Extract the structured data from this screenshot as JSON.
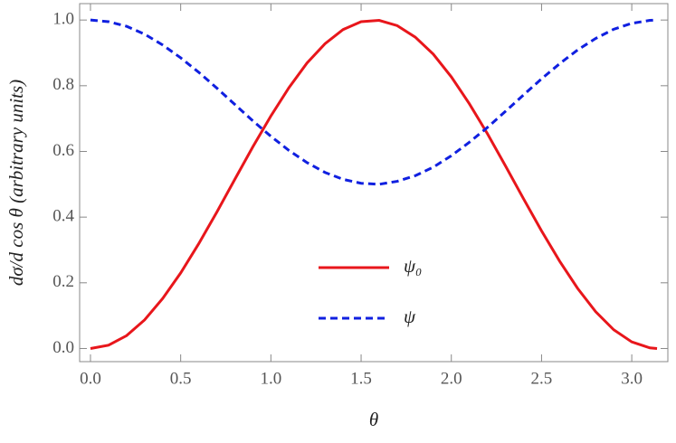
{
  "chart_data": {
    "type": "line",
    "x_label": "θ",
    "y_label": "dσ/d cos θ (arbitrary units)",
    "x": [
      0,
      0.1,
      0.2,
      0.3,
      0.4,
      0.5,
      0.6,
      0.7,
      0.8,
      0.9,
      1.0,
      1.1,
      1.2,
      1.3,
      1.4,
      1.5,
      1.6,
      1.7,
      1.8,
      1.9,
      2.0,
      2.1,
      2.2,
      2.3,
      2.4,
      2.5,
      2.6,
      2.7,
      2.8,
      2.9,
      3.0,
      3.1,
      3.14
    ],
    "series": [
      {
        "name": "ψ₀",
        "color": "#e8161b",
        "dash": false,
        "values": [
          0,
          0.01,
          0.039,
          0.087,
          0.152,
          0.23,
          0.319,
          0.415,
          0.515,
          0.614,
          0.708,
          0.794,
          0.869,
          0.928,
          0.971,
          0.995,
          0.999,
          0.983,
          0.948,
          0.896,
          0.827,
          0.745,
          0.654,
          0.556,
          0.456,
          0.358,
          0.266,
          0.183,
          0.112,
          0.057,
          0.02,
          0.002,
          0.0
        ]
      },
      {
        "name": "ψ",
        "color": "#1020e0",
        "dash": true,
        "values": [
          1,
          0.995,
          0.981,
          0.957,
          0.924,
          0.885,
          0.841,
          0.793,
          0.743,
          0.693,
          0.646,
          0.603,
          0.566,
          0.536,
          0.515,
          0.503,
          0.5,
          0.509,
          0.526,
          0.552,
          0.587,
          0.628,
          0.673,
          0.722,
          0.772,
          0.821,
          0.867,
          0.909,
          0.944,
          0.972,
          0.99,
          0.999,
          1.0
        ]
      }
    ],
    "xlim": [
      -0.06,
      3.2
    ],
    "ylim": [
      -0.04,
      1.05
    ],
    "xticks": [
      {
        "value": 0,
        "label": "0.0"
      },
      0.5,
      {
        "value": 1,
        "label": "1.0"
      },
      1.5,
      {
        "value": 2,
        "label": "2.0"
      },
      2.5,
      {
        "value": 3,
        "label": "3.0"
      }
    ],
    "yticks": [
      {
        "value": 0,
        "label": "0.0"
      },
      0.2,
      0.4,
      0.6,
      0.8,
      {
        "value": 1,
        "label": "1.0"
      }
    ],
    "legend": "center"
  }
}
